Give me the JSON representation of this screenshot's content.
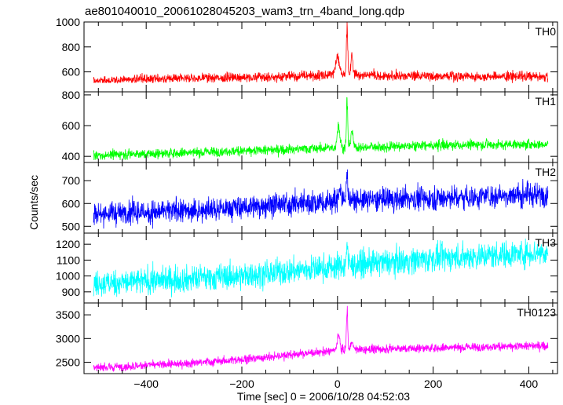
{
  "title": "ae801040010_20061028045203_wam3_trn_4band_long.qdp",
  "xlabel": "Time [sec] 0 = 2006/10/28 04:52:03",
  "ylabel": "Counts/sec",
  "chart_data": {
    "type": "line",
    "title": "ae801040010_20061028045203_wam3_trn_4band_long.qdp",
    "xlabel": "Time [sec] 0 = 2006/10/28 04:52:03",
    "ylabel": "Counts/sec",
    "xlim": [
      -530,
      460
    ],
    "xticks": [
      -400,
      -200,
      0,
      200,
      400
    ],
    "grid": false,
    "panels": [
      {
        "name": "TH0",
        "color": "#ff0000",
        "ylim": [
          440,
          1000
        ],
        "yticks": [
          600,
          800,
          1000
        ],
        "trend_x": [
          -510,
          -400,
          -200,
          -50,
          0,
          100,
          440
        ],
        "trend_y": [
          520,
          545,
          555,
          570,
          580,
          570,
          560
        ],
        "noise": 20,
        "min": 510,
        "peaks": [
          {
            "x": 0,
            "y": 760,
            "w": 5
          },
          {
            "x": 20,
            "y": 1000,
            "w": 2
          },
          {
            "x": 30,
            "y": 740,
            "w": 3
          }
        ]
      },
      {
        "name": "TH1",
        "color": "#00ff00",
        "ylim": [
          360,
          820
        ],
        "yticks": [
          400,
          600,
          800
        ],
        "trend_x": [
          -510,
          -300,
          -100,
          0,
          200,
          440
        ],
        "trend_y": [
          405,
          425,
          445,
          455,
          470,
          480
        ],
        "noise": 16,
        "min": 375,
        "peaks": [
          {
            "x": 2,
            "y": 635,
            "w": 4
          },
          {
            "x": 20,
            "y": 820,
            "w": 2
          },
          {
            "x": 30,
            "y": 600,
            "w": 3
          }
        ]
      },
      {
        "name": "TH2",
        "color": "#0000ff",
        "ylim": [
          470,
          780
        ],
        "yticks": [
          500,
          600,
          700
        ],
        "trend_x": [
          -510,
          -300,
          -150,
          0,
          200,
          440
        ],
        "trend_y": [
          555,
          568,
          590,
          610,
          625,
          640
        ],
        "noise": 26,
        "min": 480,
        "peaks": [
          {
            "x": 20,
            "y": 780,
            "w": 2
          },
          {
            "x": 5,
            "y": 690,
            "w": 4
          }
        ]
      },
      {
        "name": "TH3",
        "color": "#00ffff",
        "ylim": [
          830,
          1270
        ],
        "yticks": [
          900,
          1000,
          1100,
          1200
        ],
        "trend_x": [
          -510,
          -200,
          0,
          200,
          440
        ],
        "trend_y": [
          950,
          1000,
          1060,
          1110,
          1150
        ],
        "noise": 42,
        "min": 850,
        "peaks": [
          {
            "x": 20,
            "y": 1240,
            "w": 2
          }
        ]
      },
      {
        "name": "TH0123",
        "color": "#ff00ff",
        "ylim": [
          2260,
          3750
        ],
        "yticks": [
          2500,
          3000,
          3500
        ],
        "trend_x": [
          -510,
          -300,
          -150,
          0,
          100,
          440
        ],
        "trend_y": [
          2380,
          2480,
          2600,
          2750,
          2780,
          2850
        ],
        "noise": 45,
        "min": 2300,
        "peaks": [
          {
            "x": 2,
            "y": 3150,
            "w": 4
          },
          {
            "x": 20,
            "y": 3750,
            "w": 2
          },
          {
            "x": 30,
            "y": 3000,
            "w": 3
          }
        ]
      }
    ]
  }
}
